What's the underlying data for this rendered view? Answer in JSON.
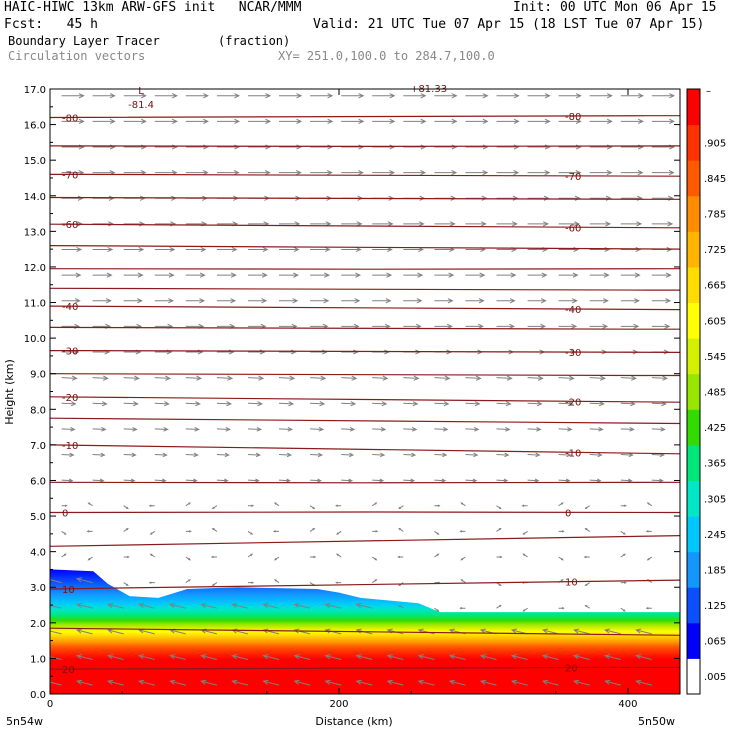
{
  "header": {
    "line1_left": "HAIC-HIWC 13km ARW-GFS init   NCAR/MMM",
    "line1_right": "Init: 00 UTC Mon 06 Apr 15",
    "line2_left": "Fcst:   45 h",
    "line2_right": "Valid: 21 UTC Tue 07 Apr 15 (18 LST Tue 07 Apr 15)",
    "line3_left": "Boundary Layer Tracer",
    "line3_units": "(fraction)",
    "line4_left": "Circulation vectors",
    "line4_xy": "XY= 251.0,100.0 to 284.7,100.0"
  },
  "chart_data": {
    "type": "heatmap",
    "xlabel": "Distance (km)",
    "ylabel": "Height (km)",
    "xlim": [
      0,
      436
    ],
    "ylim": [
      0,
      17
    ],
    "x_ticks": [
      "0",
      "200",
      "400"
    ],
    "y_ticks": [
      "0.0",
      "1.0",
      "2.0",
      "3.0",
      "4.0",
      "5.0",
      "6.0",
      "7.0",
      "8.0",
      "9.0",
      "10.0",
      "11.0",
      "12.0",
      "13.0",
      "14.0",
      "15.0",
      "16.0",
      "17.0"
    ],
    "x_end_labels": {
      "left": "5n54w",
      "right": "5n50w"
    },
    "colorbar": {
      "labels": [
        ".005",
        ".065",
        ".125",
        ".185",
        ".245",
        ".305",
        ".365",
        ".425",
        ".485",
        ".545",
        ".605",
        ".665",
        ".725",
        ".785",
        ".845",
        ".905"
      ],
      "top_label": "–",
      "colors": [
        "#ffffff",
        "#0000ff",
        "#0a50ff",
        "#1496ff",
        "#00c8ff",
        "#00e6c8",
        "#00e678",
        "#32dc00",
        "#96e600",
        "#d2f000",
        "#ffff00",
        "#ffdc00",
        "#ffb400",
        "#ff8c00",
        "#ff5a00",
        "#ff3200",
        "#ff0000"
      ]
    },
    "tracer_top_km": [
      [
        0,
        3.5
      ],
      [
        30,
        3.45
      ],
      [
        40,
        3.1
      ],
      [
        55,
        2.75
      ],
      [
        75,
        2.7
      ],
      [
        95,
        2.95
      ],
      [
        130,
        3.0
      ],
      [
        185,
        2.95
      ],
      [
        200,
        2.85
      ],
      [
        215,
        2.7
      ],
      [
        255,
        2.55
      ],
      [
        270,
        2.3
      ],
      [
        436,
        2.3
      ]
    ],
    "isotherms": [
      {
        "value": "-80",
        "y": [
          16.2,
          16.25
        ]
      },
      {
        "value": "",
        "y": [
          15.4,
          15.4
        ]
      },
      {
        "value": "-70",
        "y": [
          14.6,
          14.55
        ]
      },
      {
        "value": "",
        "y": [
          13.95,
          13.9
        ]
      },
      {
        "value": "-60",
        "y": [
          13.2,
          13.1
        ]
      },
      {
        "value": "",
        "y": [
          12.6,
          12.5
        ]
      },
      {
        "value": "",
        "y": [
          11.95,
          11.95
        ]
      },
      {
        "value": "",
        "y": [
          11.4,
          11.35
        ]
      },
      {
        "value": "-40",
        "y": [
          10.9,
          10.8
        ]
      },
      {
        "value": "",
        "y": [
          10.3,
          10.25
        ]
      },
      {
        "value": "-30",
        "y": [
          9.65,
          9.6
        ]
      },
      {
        "value": "",
        "y": [
          9.0,
          8.95
        ]
      },
      {
        "value": "-20",
        "y": [
          8.35,
          8.2
        ]
      },
      {
        "value": "",
        "y": [
          7.75,
          7.6
        ]
      },
      {
        "value": "-10",
        "y": [
          7.0,
          6.75
        ]
      },
      {
        "value": "",
        "y": [
          5.95,
          5.95
        ]
      },
      {
        "value": "0",
        "y": [
          5.1,
          5.1
        ]
      },
      {
        "value": "",
        "y": [
          4.15,
          4.45
        ]
      },
      {
        "value": "10",
        "y": [
          2.95,
          3.2
        ]
      },
      {
        "value": "",
        "y": [
          1.85,
          1.65
        ]
      },
      {
        "value": "20",
        "y": [
          0.7,
          0.75
        ]
      }
    ],
    "annotations": [
      {
        "text": "L",
        "x": 63,
        "y": 16.95
      },
      {
        "text": "-81.4",
        "x": 63,
        "y": 16.55
      },
      {
        "text": "+81.33",
        "x": 262,
        "y": 17.0
      }
    ]
  }
}
